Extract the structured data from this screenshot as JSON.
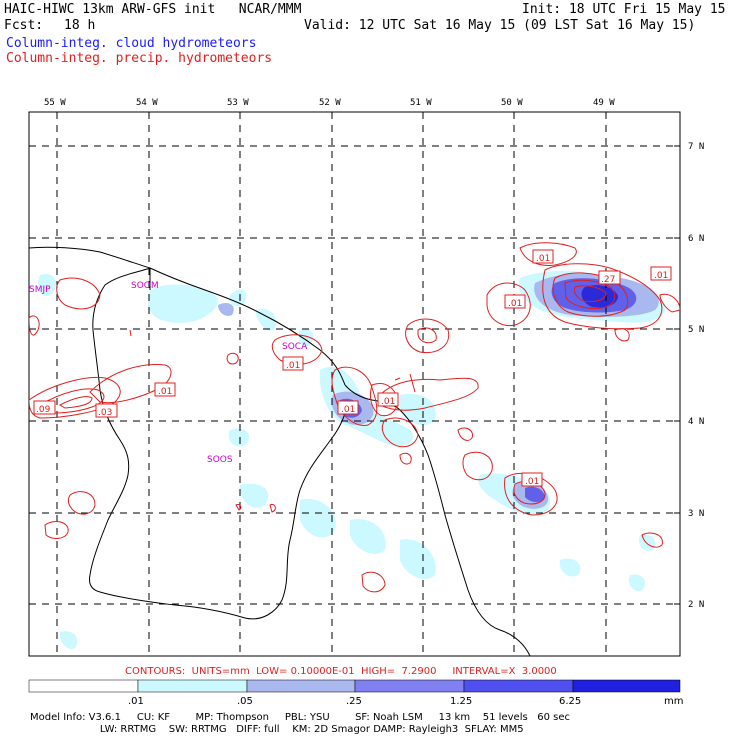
{
  "header": {
    "title_left": "HAIC-HIWC 13km ARW-GFS init   NCAR/MMM",
    "init": "Init: 18 UTC Fri 15 May 15",
    "fcst_label": "Fcst:",
    "fcst_value": "18 h",
    "valid": "Valid: 12 UTC Sat 16 May 15 (09 LST Sat 16 May 15)",
    "legend_cloud": "Column-integ. cloud hydrometeors",
    "legend_precip": "Column-integ. precip. hydrometeors"
  },
  "map": {
    "lon_labels": [
      "55 W",
      "54 W",
      "53 W",
      "52 W",
      "51 W",
      "50 W",
      "49 W"
    ],
    "lat_labels": [
      "7 N",
      "6 N",
      "5 N",
      "4 N",
      "3 N",
      "2 N"
    ],
    "stations": [
      "SMJP",
      "SOOM",
      "SOCA",
      "SOOS"
    ],
    "contour_labels": [
      ".01",
      ".01",
      ".01",
      ".01",
      ".01",
      ".27",
      ".01",
      ".09",
      ".03",
      ".01",
      ".01",
      ".01",
      ".01"
    ]
  },
  "contours_info": "CONTOURS:  UNITS=mm  LOW= 0.10000E-01  HIGH=  7.2900     INTERVAL=X  3.0000",
  "colorbar": {
    "ticks": [
      ".01",
      ".05",
      ".25",
      "1.25",
      "6.25"
    ],
    "unit": "mm",
    "colors": [
      "#ffffff",
      "#ccf8ff",
      "#aab8f0",
      "#8080f0",
      "#5050f0",
      "#2020e0"
    ]
  },
  "footer": {
    "line1": "Model Info: V3.6.1     CU: KF        MP: Thompson     PBL: YSU        SF: Noah LSM     13 km    51 levels   60 sec",
    "line2": "                      LW: RRTMG    SW: RRTMG   DIFF: full    KM: 2D Smagor DAMP: Rayleigh3  SFLAY: MM5"
  }
}
